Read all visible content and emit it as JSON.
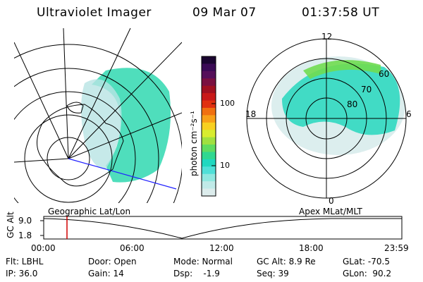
{
  "header": {
    "instrument": "Ultraviolet Imager",
    "date": "09 Mar 07",
    "time": "01:37:58 UT"
  },
  "colorbar": {
    "unit_label": "photon cm⁻²s⁻¹",
    "ticks": [
      "100",
      "10"
    ],
    "colors": [
      "#1a0530",
      "#3a0a55",
      "#55105a",
      "#7a1040",
      "#a01020",
      "#c81818",
      "#e03010",
      "#f07010",
      "#f8a018",
      "#f8d020",
      "#d8ec30",
      "#a0e040",
      "#60dc60",
      "#30d890",
      "#20d8c0",
      "#50e0d8",
      "#90e8e0",
      "#c0eae8",
      "#dcecec"
    ]
  },
  "left_panel": {
    "name": "Geographic Lat/Lon"
  },
  "right_panel": {
    "name": "Apex MLat/MLT",
    "mlt_labels": [
      "12",
      "18",
      "6",
      "0"
    ],
    "lat_labels": [
      "60",
      "70",
      "80"
    ]
  },
  "plot": {
    "ylabel": "GC Alt",
    "y_ticks": [
      "9.0",
      "1.8"
    ],
    "x_ticks": [
      "00:00",
      "06:00",
      "12:00",
      "18:00",
      "23:59"
    ],
    "cursor_color": "#d00000"
  },
  "footer": {
    "flt": "Flt: LBHL",
    "ip": "IP: 36.0",
    "door": "Door: Open",
    "gain": "Gain: 14",
    "mode": "Mode: Normal",
    "dsp": "Dsp:    -1.9",
    "gc_alt": "GC Alt: 8.9 Re",
    "seq": "Seq: 39",
    "glat": "GLat: -70.5",
    "glon": "GLon:  90.2"
  }
}
